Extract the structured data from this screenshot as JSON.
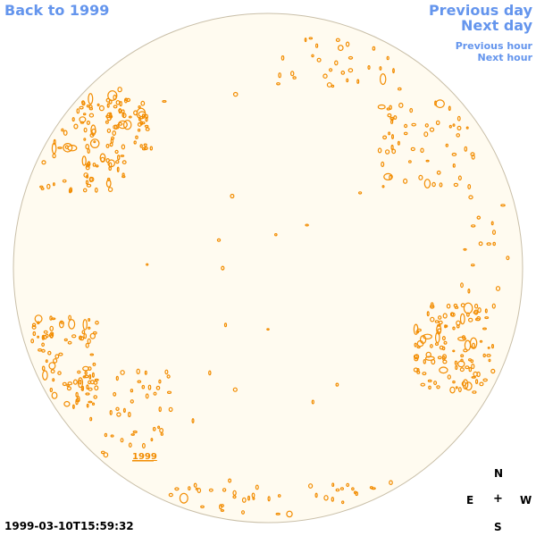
{
  "nav": {
    "back_label": "Back to 1999",
    "previous_day_label": "Previous day",
    "next_day_label": "Next day",
    "previous_hour_label": "Previous hour",
    "next_hour_label": "Next hour"
  },
  "map": {
    "disk_color": "#fffbf0",
    "disk_border_color": "#c9bfa8",
    "contour_color": "#f28c00",
    "year_label": "1999"
  },
  "compass": {
    "north": "N",
    "east": "E",
    "center": "+",
    "west": "W",
    "south": "S"
  },
  "timestamp": "1999-03-10T15:59:32"
}
